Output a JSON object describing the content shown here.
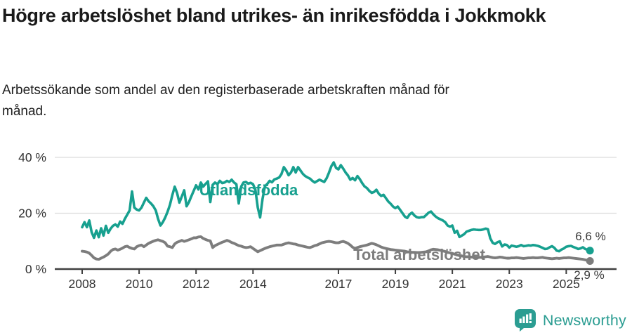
{
  "title": "Högre arbetslöshet bland utrikes- än inrikesfödda i Jokkmokk",
  "subtitle": "Arbetssökande som andel av den registerbaserade arbetskraften månad för månad.",
  "branding": {
    "logo_text": "Newsworthy",
    "logo_icon": "newsworthy-speech-bubble-bar-chart-icon"
  },
  "colors": {
    "accent_teal": "#17a08f",
    "line_gray": "#7d7d7d",
    "axis": "#404040",
    "grid": "#dcdcdc",
    "text_dark": "#1a1a1a",
    "end_label": "#3a3a3a",
    "logo_teal": "#2b9d92"
  },
  "chart_data": {
    "type": "line",
    "title": "Högre arbetslöshet bland utrikes- än inrikesfödda i Jokkmokk",
    "subtitle": "Arbetssökande som andel av den registerbaserade arbetskraften månad för månad.",
    "x_unit": "month",
    "x_start": "2008-01",
    "x_end": "2025-11",
    "x_tick_years": [
      2008,
      2010,
      2012,
      2014,
      2017,
      2019,
      2021,
      2023,
      2025
    ],
    "x_tick_labels": [
      "2008",
      "2010",
      "2012",
      "2014",
      "2017",
      "2019",
      "2021",
      "2023",
      "2025"
    ],
    "ylim": [
      0,
      40
    ],
    "y_ticks": [
      {
        "value": 0,
        "label": "0 %"
      },
      {
        "value": 20,
        "label": "20 %"
      },
      {
        "value": 40,
        "label": "40 %"
      }
    ],
    "grid": "horizontal",
    "legend": "inline-labels",
    "series": [
      {
        "name": "Utlandsfödda",
        "color": "#17a08f",
        "end_label": "6,6 %",
        "end_value": 6.6,
        "values": [
          15.0,
          16.8,
          15.0,
          17.4,
          13.2,
          11.2,
          13.8,
          11.4,
          14.6,
          12.0,
          15.5,
          13.0,
          14.5,
          15.5,
          16.0,
          15.2,
          17.0,
          16.2,
          18.0,
          19.5,
          21.0,
          27.8,
          22.0,
          21.3,
          21.0,
          22.0,
          23.8,
          25.5,
          24.3,
          23.5,
          22.5,
          21.0,
          18.0,
          15.6,
          16.8,
          18.5,
          20.5,
          23.0,
          26.5,
          29.5,
          27.2,
          23.8,
          26.0,
          28.2,
          22.5,
          24.0,
          26.0,
          28.0,
          30.0,
          28.5,
          31.0,
          29.5,
          30.5,
          31.4,
          24.0,
          30.2,
          31.0,
          30.4,
          31.6,
          30.8,
          31.0,
          31.6,
          31.2,
          32.0,
          31.0,
          30.4,
          23.5,
          29.5,
          31.0,
          31.2,
          30.6,
          30.9,
          30.4,
          28.4,
          22.0,
          18.5,
          25.0,
          29.6,
          30.5,
          31.6,
          31.1,
          32.1,
          32.4,
          32.8,
          34.0,
          36.5,
          35.3,
          33.6,
          34.6,
          36.5,
          34.6,
          36.5,
          35.3,
          34.1,
          33.3,
          32.8,
          32.4,
          31.6,
          31.0,
          31.5,
          32.0,
          31.6,
          31.2,
          32.5,
          34.5,
          36.8,
          38.2,
          36.2,
          35.7,
          37.2,
          36.0,
          34.6,
          33.5,
          32.0,
          32.6,
          31.8,
          33.3,
          32.2,
          30.8,
          29.6,
          29.0,
          28.0,
          27.3,
          27.6,
          28.4,
          27.0,
          26.2,
          26.6,
          25.4,
          24.2,
          23.4,
          22.4,
          21.8,
          22.4,
          21.2,
          20.0,
          18.8,
          18.3,
          19.6,
          20.2,
          19.2,
          18.6,
          18.4,
          18.6,
          18.6,
          19.4,
          20.2,
          20.6,
          19.6,
          18.8,
          18.2,
          17.8,
          17.4,
          16.8,
          15.6,
          15.2,
          15.6,
          13.0,
          13.7,
          11.5,
          12.0,
          12.5,
          13.4,
          13.7,
          14.0,
          14.2,
          14.1,
          14.0,
          14.0,
          14.2,
          14.5,
          14.3,
          11.0,
          9.4,
          9.0,
          9.6,
          9.9,
          8.1,
          8.8,
          8.6,
          7.7,
          8.4,
          8.2,
          8.0,
          8.2,
          8.6,
          8.2,
          8.3,
          8.5,
          8.4,
          8.6,
          8.5,
          8.3,
          8.0,
          7.6,
          7.2,
          7.3,
          7.8,
          8.2,
          7.6,
          6.6,
          6.4,
          7.0,
          7.4,
          8.0,
          8.2,
          8.3,
          7.9,
          7.6,
          7.2,
          7.4,
          7.8,
          7.2,
          6.9,
          6.6
        ]
      },
      {
        "name": "Total arbetslöshet",
        "color": "#7d7d7d",
        "end_label": "2,9 %",
        "end_value": 2.9,
        "values": [
          6.4,
          6.3,
          6.1,
          5.7,
          4.9,
          4.0,
          3.6,
          3.5,
          3.9,
          4.3,
          4.8,
          5.4,
          6.4,
          7.0,
          7.2,
          6.8,
          7.1,
          7.5,
          8.0,
          8.2,
          7.7,
          7.4,
          7.2,
          8.0,
          8.4,
          8.6,
          8.0,
          8.6,
          9.2,
          9.6,
          10.0,
          10.3,
          10.5,
          10.2,
          9.9,
          9.4,
          8.2,
          8.0,
          7.7,
          9.0,
          9.6,
          9.9,
          10.3,
          9.9,
          10.2,
          10.5,
          10.8,
          11.2,
          11.2,
          11.5,
          11.6,
          11.0,
          10.6,
          10.3,
          10.1,
          7.7,
          8.4,
          8.8,
          9.2,
          9.6,
          9.9,
          10.3,
          10.0,
          9.5,
          9.2,
          8.8,
          8.4,
          8.2,
          7.9,
          7.7,
          7.8,
          8.0,
          7.4,
          6.8,
          6.2,
          6.6,
          7.0,
          7.4,
          7.7,
          8.0,
          8.2,
          8.4,
          8.6,
          8.6,
          8.6,
          8.9,
          9.2,
          9.4,
          9.2,
          9.0,
          8.9,
          8.6,
          8.4,
          8.2,
          8.0,
          7.8,
          7.7,
          8.0,
          8.4,
          8.6,
          9.0,
          9.4,
          9.6,
          9.8,
          9.9,
          9.8,
          9.6,
          9.4,
          9.4,
          9.7,
          9.9,
          9.6,
          9.2,
          8.6,
          7.8,
          7.4,
          7.7,
          8.0,
          8.2,
          8.4,
          8.6,
          8.9,
          9.2,
          9.0,
          8.7,
          8.3,
          7.9,
          7.6,
          7.4,
          7.2,
          7.0,
          6.9,
          6.8,
          6.7,
          6.6,
          6.5,
          6.4,
          6.2,
          6.1,
          6.0,
          6.0,
          5.9,
          5.9,
          6.0,
          6.1,
          6.2,
          6.5,
          6.9,
          7.1,
          7.0,
          6.9,
          6.7,
          6.5,
          6.3,
          6.0,
          5.8,
          5.6,
          5.3,
          5.1,
          4.9,
          4.7,
          4.5,
          4.4,
          4.4,
          4.3,
          4.3,
          4.2,
          4.2,
          4.2,
          4.3,
          4.4,
          4.5,
          4.3,
          4.1,
          4.0,
          4.1,
          4.3,
          4.2,
          4.0,
          3.9,
          3.9,
          4.0,
          4.0,
          4.1,
          4.0,
          3.9,
          3.8,
          3.9,
          4.0,
          4.0,
          4.1,
          4.0,
          4.0,
          4.1,
          4.2,
          4.0,
          3.9,
          3.8,
          3.7,
          3.8,
          3.9,
          3.8,
          3.9,
          4.0,
          4.0,
          4.1,
          4.0,
          3.9,
          3.8,
          3.7,
          3.6,
          3.5,
          3.3,
          3.1,
          2.9
        ]
      }
    ]
  }
}
